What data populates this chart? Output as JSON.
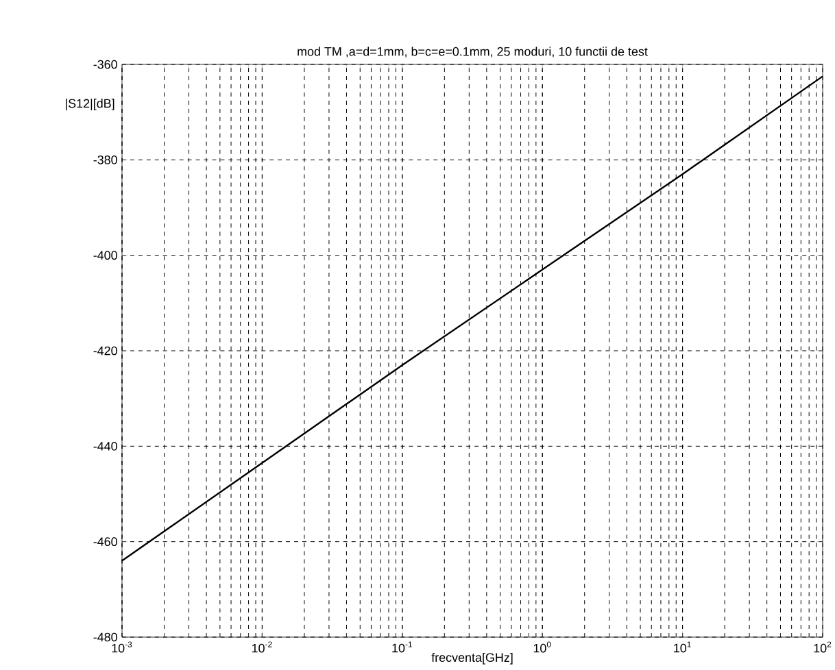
{
  "chart_data": {
    "type": "line",
    "title": "mod TM ,a=d=1mm, b=c=e=0.1mm, 25 moduri, 10 functii de test",
    "xlabel": "frecventa[GHz]",
    "ylabel": "|S12|[dB]",
    "log": "x",
    "grid": true,
    "marker": "none",
    "line_style": "solid",
    "x": [
      0.001,
      0.01,
      0.1,
      1,
      10,
      100
    ],
    "series": [
      {
        "color": "#000000",
        "values": [
          -464,
          -443.5,
          -423,
          -403,
          -383,
          -362.5
        ]
      }
    ],
    "xlim": [
      0.001,
      100
    ],
    "xticks": [
      {
        "value": 0.001,
        "label": "10$^{-3}$"
      },
      {
        "value": 0.01,
        "label": "10$^{-2}$"
      },
      {
        "value": 0.1,
        "label": "10$^{-1}$"
      },
      {
        "value": 1,
        "label": "10$^{0}$"
      },
      {
        "value": 10,
        "label": "10$^{1}$"
      },
      {
        "value": 100,
        "label": "10$^{2}$"
      }
    ],
    "ylim": [
      -480,
      -360
    ],
    "yticks": [
      -480,
      -460,
      -440,
      -420,
      -400,
      -380,
      -360
    ]
  }
}
